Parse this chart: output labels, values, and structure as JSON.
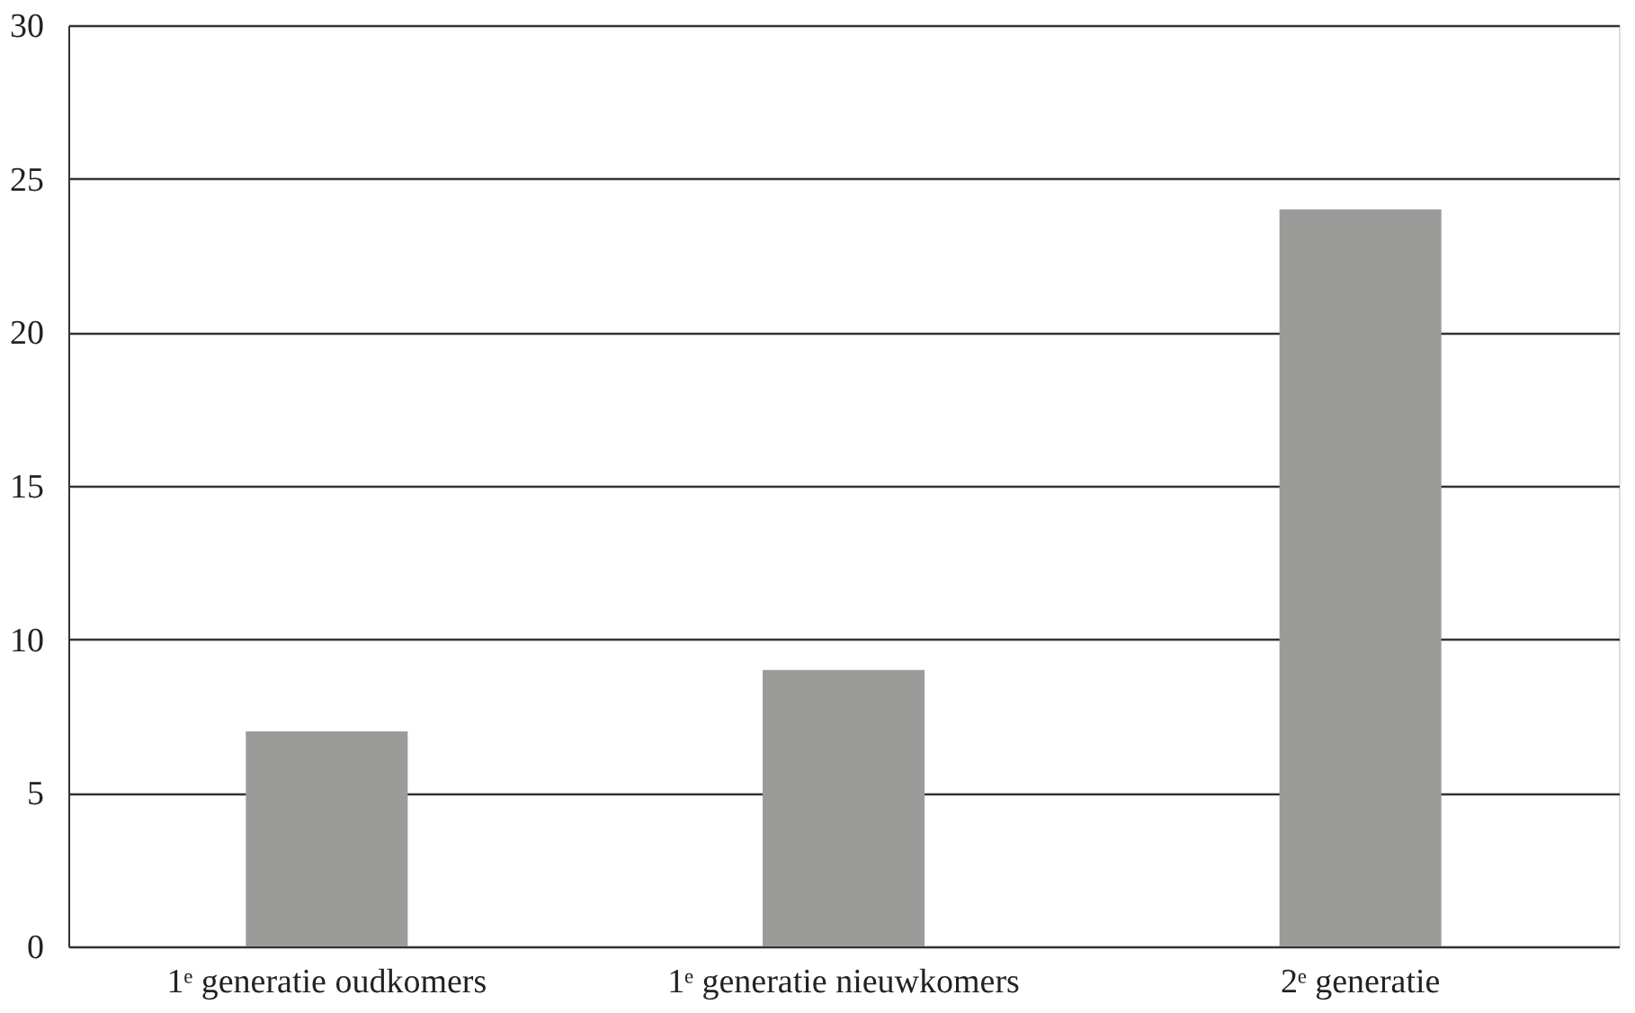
{
  "chart_data": {
    "type": "bar",
    "categories": [
      "1ᵉ generatie oudkomers",
      "1ᵉ generatie nieuwkomers",
      "2ᵉ generatie"
    ],
    "values": [
      7,
      9,
      24
    ],
    "color": "#9b9b9a",
    "ylim": [
      0,
      30
    ],
    "yticks": [
      0,
      5,
      10,
      15,
      20,
      25,
      30
    ],
    "grid": "y"
  }
}
